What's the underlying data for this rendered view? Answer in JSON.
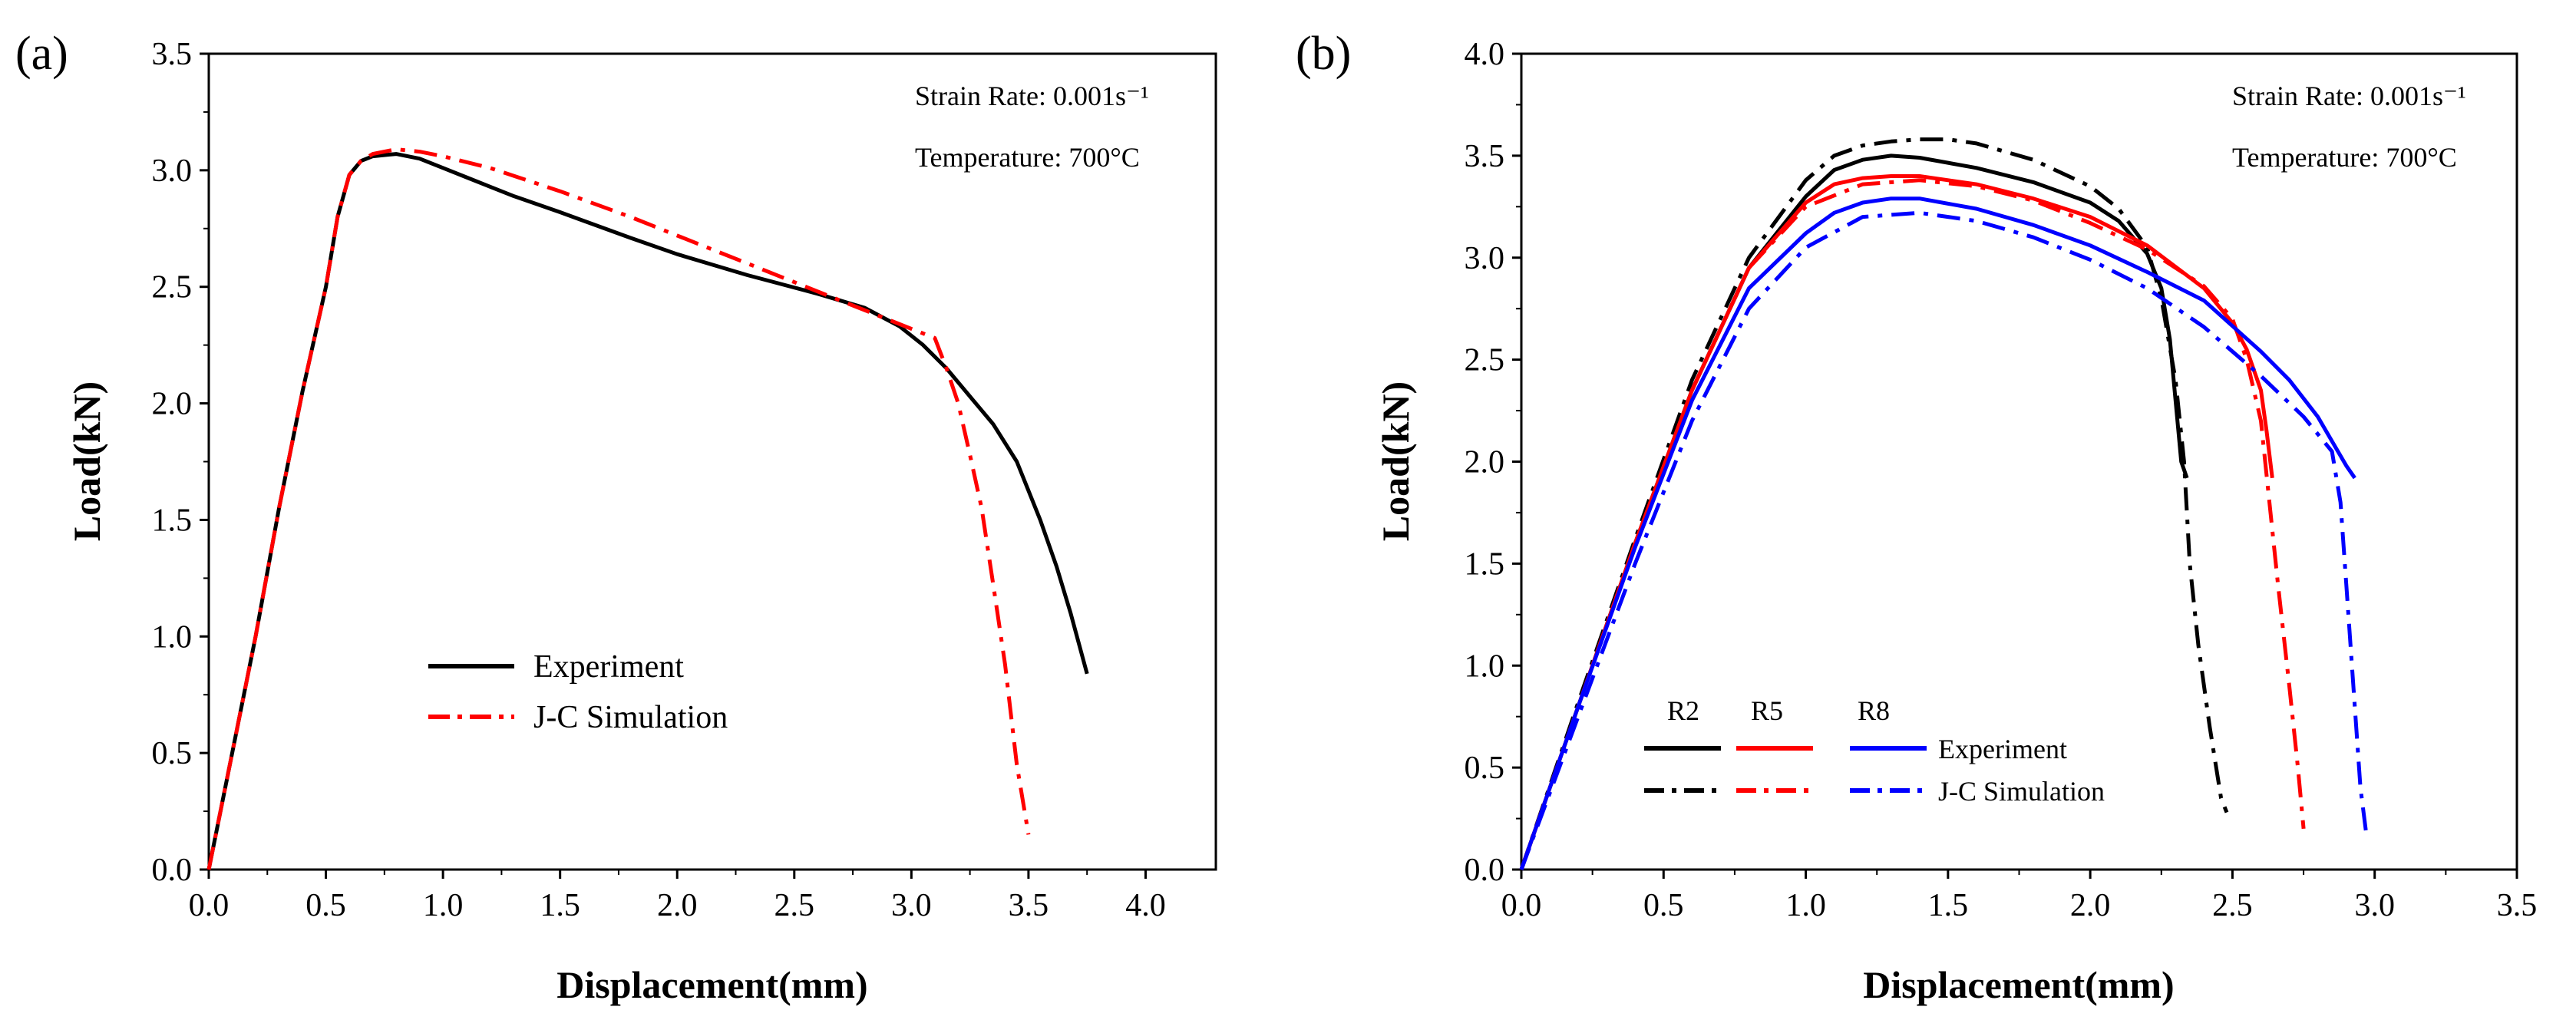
{
  "chart_data": [
    {
      "panel_label": "(a)",
      "type": "line",
      "xlabel": "Displacement(mm)",
      "ylabel": "Load(kN)",
      "xlim": [
        0.0,
        4.3
      ],
      "ylim": [
        0.0,
        3.5
      ],
      "xticks": [
        "0.0",
        "0.5",
        "1.0",
        "1.5",
        "2.0",
        "2.5",
        "3.0",
        "3.5",
        "4.0"
      ],
      "yticks": [
        "0.0",
        "0.5",
        "1.0",
        "1.5",
        "2.0",
        "2.5",
        "3.0",
        "3.5"
      ],
      "annotations": [
        "Strain Rate: 0.001s⁻¹",
        "Temperature:  700°C"
      ],
      "legend": [
        "Experiment",
        "J-C Simulation"
      ],
      "series": [
        {
          "name": "Experiment",
          "color": "#000000",
          "style": "solid",
          "x": [
            0.0,
            0.1,
            0.2,
            0.3,
            0.4,
            0.5,
            0.55,
            0.6,
            0.65,
            0.7,
            0.8,
            0.9,
            1.0,
            1.1,
            1.3,
            1.5,
            1.8,
            2.0,
            2.3,
            2.6,
            2.8,
            2.95,
            3.05,
            3.15,
            3.25,
            3.35,
            3.45,
            3.55,
            3.62,
            3.68,
            3.75
          ],
          "y": [
            0.0,
            0.5,
            1.0,
            1.55,
            2.05,
            2.5,
            2.8,
            2.98,
            3.04,
            3.06,
            3.07,
            3.05,
            3.01,
            2.97,
            2.89,
            2.82,
            2.71,
            2.64,
            2.55,
            2.47,
            2.41,
            2.33,
            2.25,
            2.15,
            2.03,
            1.91,
            1.75,
            1.5,
            1.3,
            1.1,
            0.84
          ]
        },
        {
          "name": "J-C Simulation",
          "color": "#ff0000",
          "style": "dashdot",
          "x": [
            0.0,
            0.1,
            0.2,
            0.3,
            0.4,
            0.5,
            0.55,
            0.6,
            0.65,
            0.7,
            0.8,
            0.9,
            1.0,
            1.2,
            1.5,
            1.8,
            2.0,
            2.3,
            2.6,
            2.8,
            3.0,
            3.1,
            3.15,
            3.2,
            3.25,
            3.3,
            3.35,
            3.4,
            3.45,
            3.5
          ],
          "y": [
            0.0,
            0.5,
            1.0,
            1.55,
            2.05,
            2.5,
            2.8,
            2.98,
            3.04,
            3.07,
            3.09,
            3.08,
            3.06,
            3.01,
            2.91,
            2.8,
            2.72,
            2.6,
            2.48,
            2.4,
            2.32,
            2.28,
            2.15,
            2.0,
            1.78,
            1.55,
            1.22,
            0.88,
            0.45,
            0.15
          ]
        }
      ]
    },
    {
      "panel_label": "(b)",
      "type": "line",
      "xlabel": "Displacement(mm)",
      "ylabel": "Load(kN)",
      "xlim": [
        0.0,
        3.5
      ],
      "ylim": [
        0.0,
        4.0
      ],
      "xticks": [
        "0.0",
        "0.5",
        "1.0",
        "1.5",
        "2.0",
        "2.5",
        "3.0",
        "3.5"
      ],
      "yticks": [
        "0.0",
        "0.5",
        "1.0",
        "1.5",
        "2.0",
        "2.5",
        "3.0",
        "3.5",
        "4.0"
      ],
      "annotations": [
        "Strain Rate: 0.001s⁻¹",
        "Temperature:  700°C"
      ],
      "legend_columns": [
        "R2",
        "R5",
        "R8"
      ],
      "legend_rows": [
        "Experiment",
        "J-C Simulation"
      ],
      "series": [
        {
          "group": "R2",
          "kind": "Experiment",
          "color": "#000000",
          "style": "solid",
          "x": [
            0.0,
            0.2,
            0.4,
            0.6,
            0.8,
            1.0,
            1.1,
            1.2,
            1.3,
            1.4,
            1.6,
            1.8,
            2.0,
            2.1,
            2.2,
            2.25,
            2.28,
            2.3,
            2.32,
            2.34
          ],
          "y": [
            0.0,
            0.8,
            1.6,
            2.35,
            2.95,
            3.3,
            3.43,
            3.48,
            3.5,
            3.49,
            3.44,
            3.37,
            3.27,
            3.18,
            3.02,
            2.85,
            2.6,
            2.3,
            2.0,
            1.92
          ]
        },
        {
          "group": "R2",
          "kind": "J-C Simulation",
          "color": "#000000",
          "style": "dashdot",
          "x": [
            0.0,
            0.2,
            0.4,
            0.6,
            0.8,
            1.0,
            1.1,
            1.2,
            1.3,
            1.4,
            1.5,
            1.6,
            1.8,
            2.0,
            2.1,
            2.2,
            2.25,
            2.3,
            2.33,
            2.35,
            2.38,
            2.42,
            2.46,
            2.48
          ],
          "y": [
            0.0,
            0.82,
            1.62,
            2.4,
            3.0,
            3.38,
            3.5,
            3.55,
            3.57,
            3.58,
            3.58,
            3.56,
            3.48,
            3.35,
            3.24,
            3.05,
            2.8,
            2.4,
            2.0,
            1.5,
            1.1,
            0.7,
            0.35,
            0.28
          ]
        },
        {
          "group": "R5",
          "kind": "Experiment",
          "color": "#ff0000",
          "style": "solid",
          "x": [
            0.0,
            0.2,
            0.4,
            0.6,
            0.8,
            1.0,
            1.1,
            1.2,
            1.3,
            1.4,
            1.6,
            1.8,
            2.0,
            2.2,
            2.4,
            2.5,
            2.55,
            2.6,
            2.62,
            2.64
          ],
          "y": [
            0.0,
            0.8,
            1.6,
            2.35,
            2.95,
            3.27,
            3.36,
            3.39,
            3.4,
            3.4,
            3.36,
            3.29,
            3.2,
            3.06,
            2.85,
            2.68,
            2.55,
            2.35,
            2.15,
            1.92
          ]
        },
        {
          "group": "R5",
          "kind": "J-C Simulation",
          "color": "#ff0000",
          "style": "dashdot",
          "x": [
            0.0,
            0.2,
            0.4,
            0.6,
            0.8,
            1.0,
            1.2,
            1.4,
            1.6,
            1.8,
            2.0,
            2.2,
            2.4,
            2.5,
            2.55,
            2.6,
            2.63,
            2.66,
            2.7,
            2.73,
            2.75
          ],
          "y": [
            0.0,
            0.8,
            1.6,
            2.35,
            2.95,
            3.25,
            3.36,
            3.38,
            3.35,
            3.28,
            3.17,
            3.04,
            2.86,
            2.7,
            2.5,
            2.2,
            1.8,
            1.4,
            0.9,
            0.5,
            0.2
          ]
        },
        {
          "group": "R8",
          "kind": "Experiment",
          "color": "#0000ff",
          "style": "solid",
          "x": [
            0.0,
            0.2,
            0.4,
            0.6,
            0.8,
            1.0,
            1.1,
            1.2,
            1.3,
            1.4,
            1.6,
            1.8,
            2.0,
            2.2,
            2.4,
            2.6,
            2.7,
            2.8,
            2.85,
            2.9,
            2.93
          ],
          "y": [
            0.0,
            0.8,
            1.58,
            2.3,
            2.85,
            3.12,
            3.22,
            3.27,
            3.29,
            3.29,
            3.24,
            3.16,
            3.06,
            2.93,
            2.79,
            2.54,
            2.4,
            2.22,
            2.1,
            1.98,
            1.92
          ]
        },
        {
          "group": "R8",
          "kind": "J-C Simulation",
          "color": "#0000ff",
          "style": "dashdot",
          "x": [
            0.0,
            0.2,
            0.4,
            0.6,
            0.8,
            1.0,
            1.2,
            1.4,
            1.6,
            1.8,
            2.0,
            2.2,
            2.4,
            2.6,
            2.75,
            2.85,
            2.88,
            2.9,
            2.93,
            2.95,
            2.97
          ],
          "y": [
            0.0,
            0.75,
            1.5,
            2.2,
            2.75,
            3.05,
            3.2,
            3.22,
            3.18,
            3.1,
            2.99,
            2.85,
            2.66,
            2.42,
            2.22,
            2.05,
            1.8,
            1.4,
            0.8,
            0.4,
            0.18
          ]
        }
      ]
    }
  ]
}
